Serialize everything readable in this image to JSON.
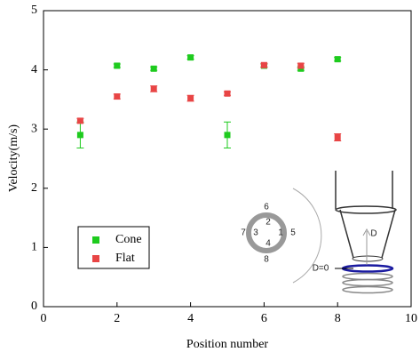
{
  "chart_data": {
    "type": "scatter",
    "xlabel": "Position number",
    "ylabel": "Velocity(m/s)",
    "x": [
      1,
      2,
      3,
      4,
      5,
      6,
      7,
      8
    ],
    "series": [
      {
        "name": "Cone",
        "color": "#1ecb1e",
        "values": [
          2.9,
          4.07,
          4.02,
          4.21,
          2.9,
          4.07,
          4.02,
          4.18
        ],
        "errors": [
          0.22,
          0.03,
          0.03,
          0.03,
          0.22,
          0.03,
          0.03,
          0.03
        ]
      },
      {
        "name": "Flat",
        "color": "#e84545",
        "values": [
          3.14,
          3.55,
          3.68,
          3.52,
          3.6,
          4.08,
          4.07,
          2.86
        ],
        "errors": [
          0.04,
          0.04,
          0.05,
          0.05,
          0.03,
          0.03,
          0.04,
          0.06
        ]
      }
    ],
    "xlim": [
      0,
      10
    ],
    "xticks": [
      0,
      2,
      4,
      6,
      8,
      10
    ],
    "ylim": [
      0,
      5
    ],
    "yticks": [
      0,
      1,
      2,
      3,
      4,
      5
    ],
    "annotations": [
      "6",
      "2",
      "7",
      "3",
      "1",
      "5",
      "4",
      "8",
      "D",
      "D=0"
    ]
  }
}
